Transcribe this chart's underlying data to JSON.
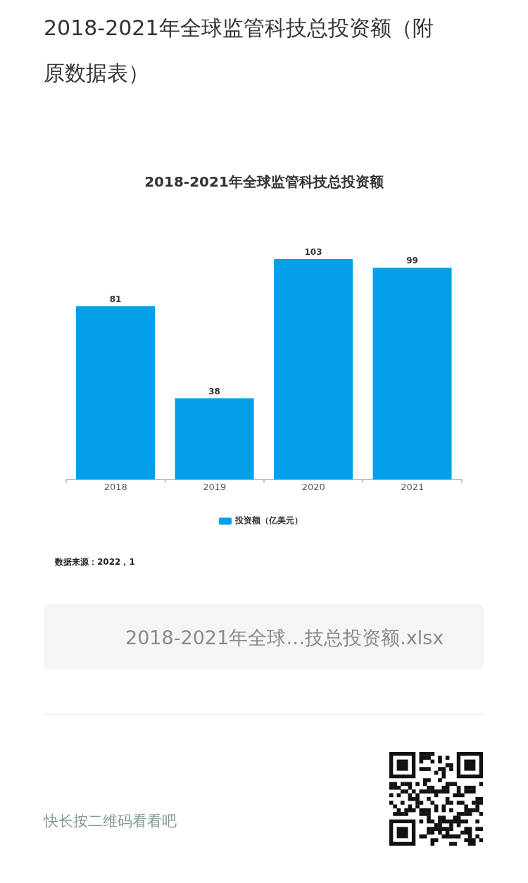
{
  "chart_data": {
    "type": "bar",
    "title": "2018-2021年全球监管科技总投资额",
    "categories": [
      "2018",
      "2019",
      "2020",
      "2021"
    ],
    "series": [
      {
        "name": "投资额（亿美元）",
        "color": "#03a0e9",
        "values": [
          81,
          38,
          103,
          99
        ]
      }
    ],
    "data_labels": true,
    "legend": "bottom",
    "grid": false,
    "annotations": [
      "2018-2021年全球监管科技总投资额（附原数据表）",
      "数据来源：2022，1",
      "2018-2021年全球…技总投资额.xlsx",
      "快长按二维码看看吧"
    ]
  }
}
